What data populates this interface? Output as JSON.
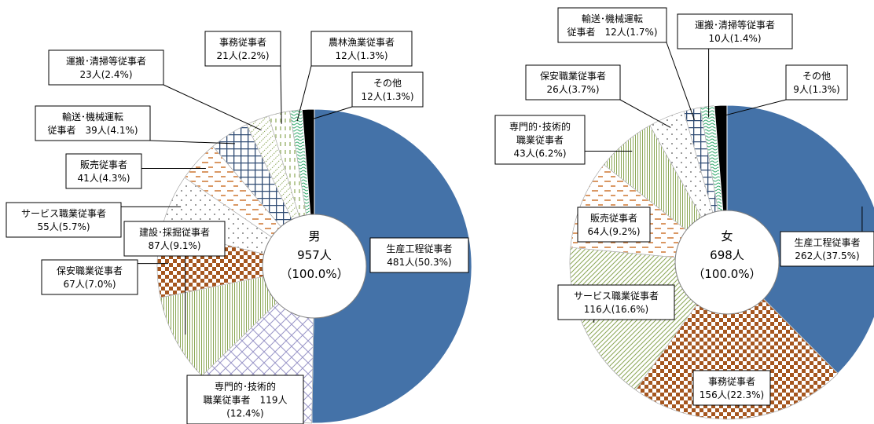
{
  "chart_data": [
    {
      "type": "pie",
      "variant": "donut",
      "center_label": [
        "男",
        "957人",
        "（100.0%）"
      ],
      "slices": [
        {
          "name": "生産工程従事者",
          "value": 481,
          "pct": "50.3%",
          "label": [
            "生産工程従事者",
            "481人(50.3%)"
          ],
          "color": "#4472a8",
          "pattern": "solid"
        },
        {
          "name": "専門的・技術的職業従事者",
          "value": 119,
          "pct": "12.4%",
          "label": [
            "専門的･技術的",
            "職業従事者　119人",
            "(12.4%)"
          ],
          "color": "#9a96c8",
          "pattern": "diag-cross"
        },
        {
          "name": "建設・採掘従事者",
          "value": 87,
          "pct": "9.1%",
          "label": [
            "建設･採掘従事者",
            "87人(9.1%)"
          ],
          "color": "#8aa655",
          "pattern": "vlines"
        },
        {
          "name": "保安職業従事者",
          "value": 67,
          "pct": "7.0%",
          "label": [
            "保安職業従事者",
            "67人(7.0%)"
          ],
          "color": "#a5561f",
          "pattern": "checker"
        },
        {
          "name": "サービス職業従事者",
          "value": 55,
          "pct": "5.7%",
          "label": [
            "サービス職業従事者",
            "55人(5.7%)"
          ],
          "color": "#555555",
          "pattern": "dots"
        },
        {
          "name": "販売従事者",
          "value": 41,
          "pct": "4.3%",
          "label": [
            "販売従事者",
            "41人(4.3%)"
          ],
          "color": "#d58a4e",
          "pattern": "dashes"
        },
        {
          "name": "輸送・機械運転従事者",
          "value": 39,
          "pct": "4.1%",
          "label": [
            "輸送･機械運転",
            "従事者　39人(4.1%)"
          ],
          "color": "#2e4a72",
          "pattern": "grid"
        },
        {
          "name": "運搬・清掃等従事者",
          "value": 23,
          "pct": "2.4%",
          "label": [
            "運搬･清掃等従事者",
            "23人(2.4%)"
          ],
          "color": "#8aa655",
          "pattern": "dotted-diag"
        },
        {
          "name": "事務従事者",
          "value": 21,
          "pct": "2.2%",
          "label": [
            "事務従事者",
            "21人(2.2%)"
          ],
          "color": "#8aa655",
          "pattern": "vdash"
        },
        {
          "name": "農林漁業従事者",
          "value": 12,
          "pct": "1.3%",
          "label": [
            "農林漁業従事者",
            "12人(1.3%)"
          ],
          "color": "#2ea86a",
          "pattern": "wave"
        },
        {
          "name": "その他",
          "value": 12,
          "pct": "1.3%",
          "label": [
            "その他",
            "12人(1.3%)"
          ],
          "color": "#000000",
          "pattern": "solid"
        }
      ]
    },
    {
      "type": "pie",
      "variant": "donut",
      "center_label": [
        "女",
        "698人",
        "（100.0%）"
      ],
      "slices": [
        {
          "name": "生産工程従事者",
          "value": 262,
          "pct": "37.5%",
          "label": [
            "生産工程従事者",
            "262人(37.5%)"
          ],
          "color": "#4472a8",
          "pattern": "solid"
        },
        {
          "name": "事務従事者",
          "value": 156,
          "pct": "22.3%",
          "label": [
            "事務従事者",
            "156人(22.3%)"
          ],
          "color": "#a5561f",
          "pattern": "checker"
        },
        {
          "name": "サービス職業従事者",
          "value": 116,
          "pct": "16.6%",
          "label": [
            "サービス職業従事者",
            "116人(16.6%)"
          ],
          "color": "#8aa655",
          "pattern": "diag"
        },
        {
          "name": "販売従事者",
          "value": 64,
          "pct": "9.2%",
          "label": [
            "販売従事者",
            "64人(9.2%)"
          ],
          "color": "#d58a4e",
          "pattern": "dashes"
        },
        {
          "name": "専門的・技術的職業従事者",
          "value": 43,
          "pct": "6.2%",
          "label": [
            "専門的･技術的",
            "職業従事者",
            "43人(6.2%)"
          ],
          "color": "#8aa655",
          "pattern": "vlines"
        },
        {
          "name": "保安職業従事者",
          "value": 26,
          "pct": "3.7%",
          "label": [
            "保安職業従事者",
            "26人(3.7%)"
          ],
          "color": "#555555",
          "pattern": "dots"
        },
        {
          "name": "輸送・機械運転従事者",
          "value": 12,
          "pct": "1.7%",
          "label": [
            "輸送･機械運転",
            "従事者　12人(1.7%)"
          ],
          "color": "#2e4a72",
          "pattern": "grid"
        },
        {
          "name": "運搬・清掃等従事者",
          "value": 10,
          "pct": "1.4%",
          "label": [
            "運搬･清掃等従事者",
            "10人(1.4%)"
          ],
          "color": "#2ea86a",
          "pattern": "wave"
        },
        {
          "name": "その他",
          "value": 9,
          "pct": "1.3%",
          "label": [
            "その他",
            "9人(1.3%)"
          ],
          "color": "#000000",
          "pattern": "solid"
        }
      ]
    }
  ]
}
